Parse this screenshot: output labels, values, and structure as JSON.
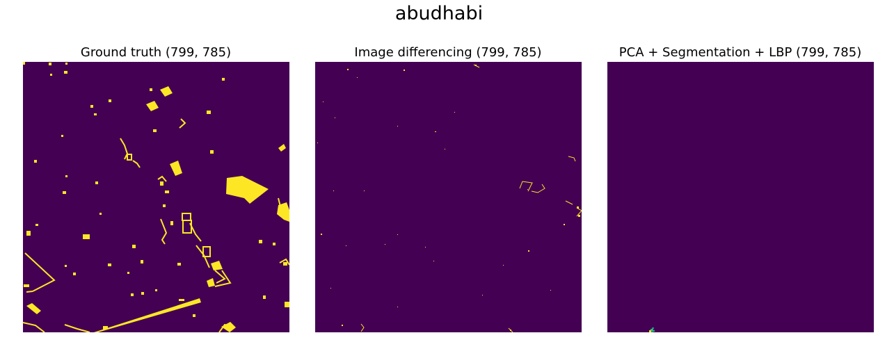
{
  "figure": {
    "suptitle": "abudhabi"
  },
  "panels": [
    {
      "title": "Ground truth (799, 785)"
    },
    {
      "title": "Image differencing (799, 785)"
    },
    {
      "title": "PCA + Segmentation + LBP (799, 785)"
    }
  ],
  "colors": {
    "background": "#440154",
    "change": "#fde725",
    "noise_green": "#35b779",
    "noise_teal": "#21918c"
  }
}
